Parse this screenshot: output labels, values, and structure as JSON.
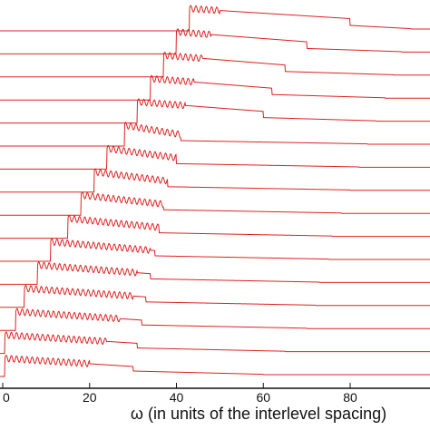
{
  "chart_data": {
    "type": "line",
    "title": "",
    "xlabel": "ω (in units of the interlevel spacing)",
    "ylabel": "",
    "xlim": [
      0,
      95
    ],
    "x_ticks": [
      "0",
      "20",
      "40",
      "60",
      "80"
    ],
    "x_tick_values": [
      0,
      20,
      40,
      60,
      80
    ],
    "grid": false,
    "legend": "none",
    "line_color": "#e02020",
    "series_count": 16,
    "series_description": "Stacked absorption spectra, one trace per row; each trace has a step edge followed by an oscillating decaying plateau, edges shifting to higher ω upward.",
    "series": [
      {
        "edge1": 0.5,
        "osc_end": 20,
        "edge2": 30,
        "edge3": 60
      },
      {
        "edge1": 0.5,
        "osc_end": 24,
        "edge2": 31,
        "edge3": 65
      },
      {
        "edge1": 3,
        "osc_end": 27,
        "edge2": 32,
        "edge3": 70
      },
      {
        "edge1": 5,
        "osc_end": 30,
        "edge2": 33,
        "edge3": 72
      },
      {
        "edge1": 8,
        "osc_end": 31,
        "edge2": 34,
        "edge3": 73
      },
      {
        "edge1": 11,
        "osc_end": 34,
        "edge2": 35,
        "edge3": 75
      },
      {
        "edge1": 15,
        "osc_end": 36,
        "edge2": 36,
        "edge3": 76
      },
      {
        "edge1": 18,
        "osc_end": 37,
        "edge2": 37,
        "edge3": 78
      },
      {
        "edge1": 21,
        "osc_end": 38,
        "edge2": 38,
        "edge3": 80
      },
      {
        "edge1": 24,
        "osc_end": 40,
        "edge2": 40,
        "edge3": 82
      },
      {
        "edge1": 28,
        "osc_end": 41,
        "edge2": 41,
        "edge3": 84
      },
      {
        "edge1": 31,
        "osc_end": 42,
        "edge2": 60,
        "edge3": 86
      },
      {
        "edge1": 34,
        "osc_end": 44,
        "edge2": 62,
        "edge3": 88
      },
      {
        "edge1": 37,
        "osc_end": 46,
        "edge2": 65,
        "edge3": 90
      },
      {
        "edge1": 40,
        "osc_end": 48,
        "edge2": 70,
        "edge3": 92
      },
      {
        "edge1": 43,
        "osc_end": 50,
        "edge2": 80,
        "edge3": 94
      }
    ]
  }
}
